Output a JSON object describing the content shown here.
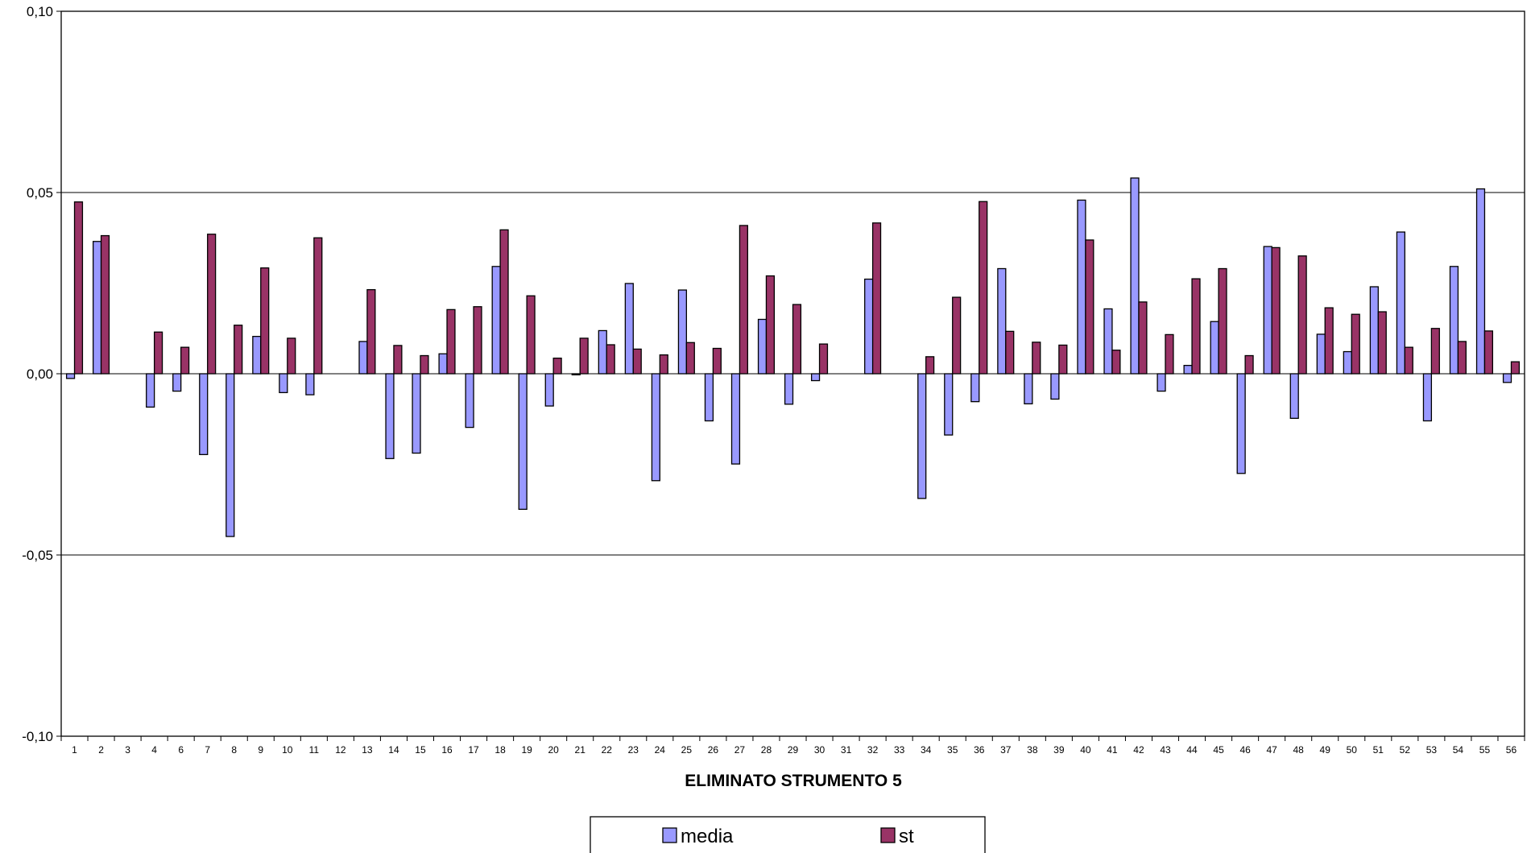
{
  "chart_data": {
    "type": "bar",
    "xlabel": "ELIMINATO STRUMENTO 5",
    "ylabel": "",
    "ylim": [
      -0.1,
      0.1
    ],
    "yticks": [
      0.1,
      0.05,
      0.0,
      -0.05,
      -0.1
    ],
    "ytick_labels": [
      "0,10",
      "0,05",
      "0,00",
      "-0,05",
      "-0,10"
    ],
    "grid": true,
    "legend_position": "bottom",
    "categories": [
      "1",
      "2",
      "3",
      "4",
      "6",
      "7",
      "8",
      "9",
      "10",
      "11",
      "12",
      "13",
      "14",
      "15",
      "16",
      "17",
      "18",
      "19",
      "20",
      "21",
      "22",
      "23",
      "24",
      "25",
      "26",
      "27",
      "28",
      "29",
      "30",
      "31",
      "32",
      "33",
      "34",
      "35",
      "36",
      "37",
      "38",
      "39",
      "40",
      "41",
      "42",
      "43",
      "44",
      "45",
      "46",
      "47",
      "48",
      "49",
      "50",
      "51",
      "52",
      "53",
      "54",
      "55",
      "56"
    ],
    "series": [
      {
        "name": "media",
        "color": "#9999ff",
        "values": [
          -0.0013,
          0.0365,
          0,
          -0.0092,
          -0.0048,
          -0.0223,
          -0.0449,
          0.0103,
          -0.0052,
          -0.0058,
          0,
          0.0089,
          -0.0234,
          -0.0219,
          0.0055,
          -0.0148,
          0.0296,
          -0.0374,
          -0.0089,
          -0.0003,
          0.0119,
          0.0249,
          -0.0295,
          0.0231,
          -0.013,
          -0.0249,
          0.015,
          -0.0084,
          -0.0019,
          0,
          0.0261,
          0,
          -0.0344,
          -0.0169,
          -0.0077,
          0.029,
          -0.0083,
          -0.007,
          0.0479,
          0.0179,
          0.054,
          -0.0048,
          0.0023,
          0.0144,
          -0.0275,
          0.0351,
          -0.0123,
          0.0109,
          0.0061,
          0.024,
          0.0391,
          -0.013,
          0.0296,
          0.051,
          -0.0024
        ]
      },
      {
        "name": "st",
        "color": "#993366",
        "values": [
          0.0474,
          0.0381,
          0,
          0.0115,
          0.0073,
          0.0385,
          0.0134,
          0.0292,
          0.0098,
          0.0375,
          0,
          0.0232,
          0.0078,
          0.005,
          0.0177,
          0.0185,
          0.0397,
          0.0215,
          0.0043,
          0.0098,
          0.008,
          0.0068,
          0.0052,
          0.0086,
          0.007,
          0.0409,
          0.027,
          0.0191,
          0.0082,
          0,
          0.0416,
          0,
          0.0047,
          0.0211,
          0.0475,
          0.0117,
          0.0087,
          0.0079,
          0.0369,
          0.0065,
          0.0198,
          0.0108,
          0.0262,
          0.029,
          0.005,
          0.0348,
          0.0325,
          0.0182,
          0.0164,
          0.0171,
          0.0073,
          0.0125,
          0.0089,
          0.0118,
          0.0033
        ]
      }
    ]
  }
}
